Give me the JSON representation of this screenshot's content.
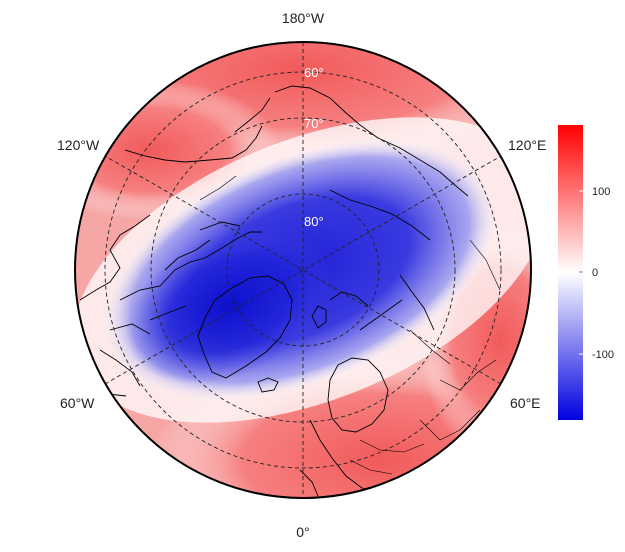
{
  "map": {
    "projection": "polar-stereographic-north",
    "longitude_labels": {
      "top": "180°W",
      "upper_left": "120°W",
      "upper_right": "120°E",
      "lower_left": "60°W",
      "lower_right": "60°E",
      "bottom": "0°"
    },
    "latitude_labels": [
      "60°",
      "70°",
      "80°"
    ],
    "graticule_style": "dashed"
  },
  "colorbar": {
    "ticks": [
      "100",
      "0",
      "-100"
    ],
    "tick_values": [
      100,
      0,
      -100
    ],
    "range": [
      -180,
      180
    ],
    "colors": {
      "min": "#0000e0",
      "mid": "#ffffff",
      "max": "#ff0000"
    }
  }
}
